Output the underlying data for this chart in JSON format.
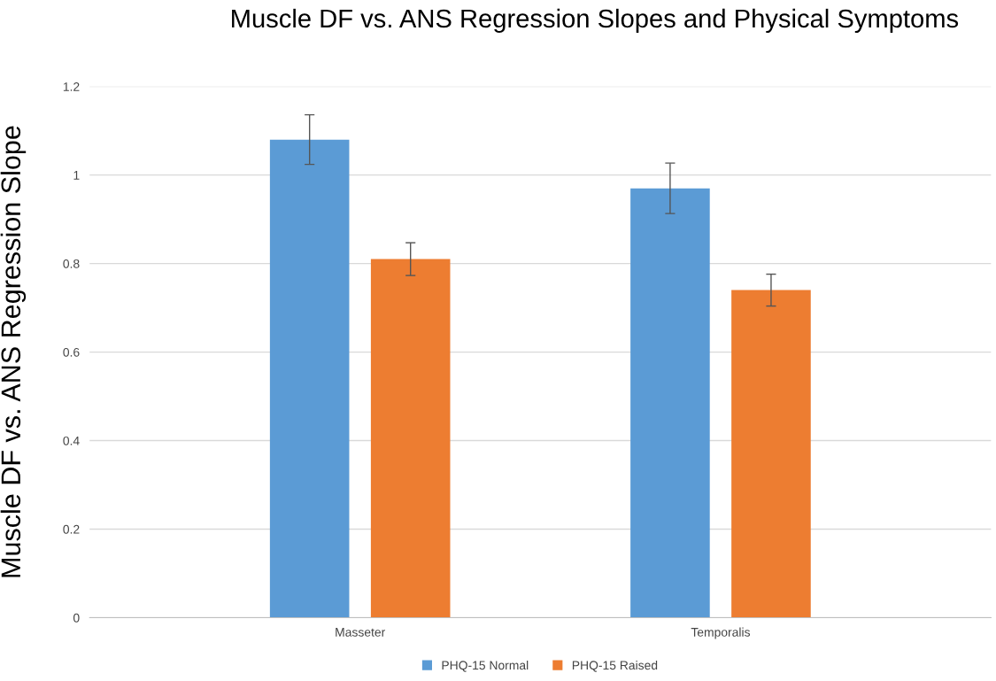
{
  "chart_data": {
    "type": "bar",
    "title": "Muscle DF vs. ANS Regression Slopes and Physical Symptoms",
    "ylabel": "Muscle DF vs. ANS Regression Slope",
    "categories": [
      "Masseter",
      "Temporalis"
    ],
    "series": [
      {
        "name": "PHQ-15 Normal",
        "color": "#5b9bd5",
        "values": [
          1.08,
          0.97
        ],
        "errors": [
          0.056,
          0.057
        ]
      },
      {
        "name": "PHQ-15 Raised",
        "color": "#ed7d31",
        "values": [
          0.81,
          0.74
        ],
        "errors": [
          0.037,
          0.036
        ]
      }
    ],
    "ylim": [
      0,
      1.2
    ],
    "yticks": [
      0,
      0.2,
      0.4,
      0.6,
      0.8,
      {
        "value": 1.0,
        "label": "1"
      },
      1.2
    ],
    "grid": "y",
    "legend": "bottom"
  }
}
